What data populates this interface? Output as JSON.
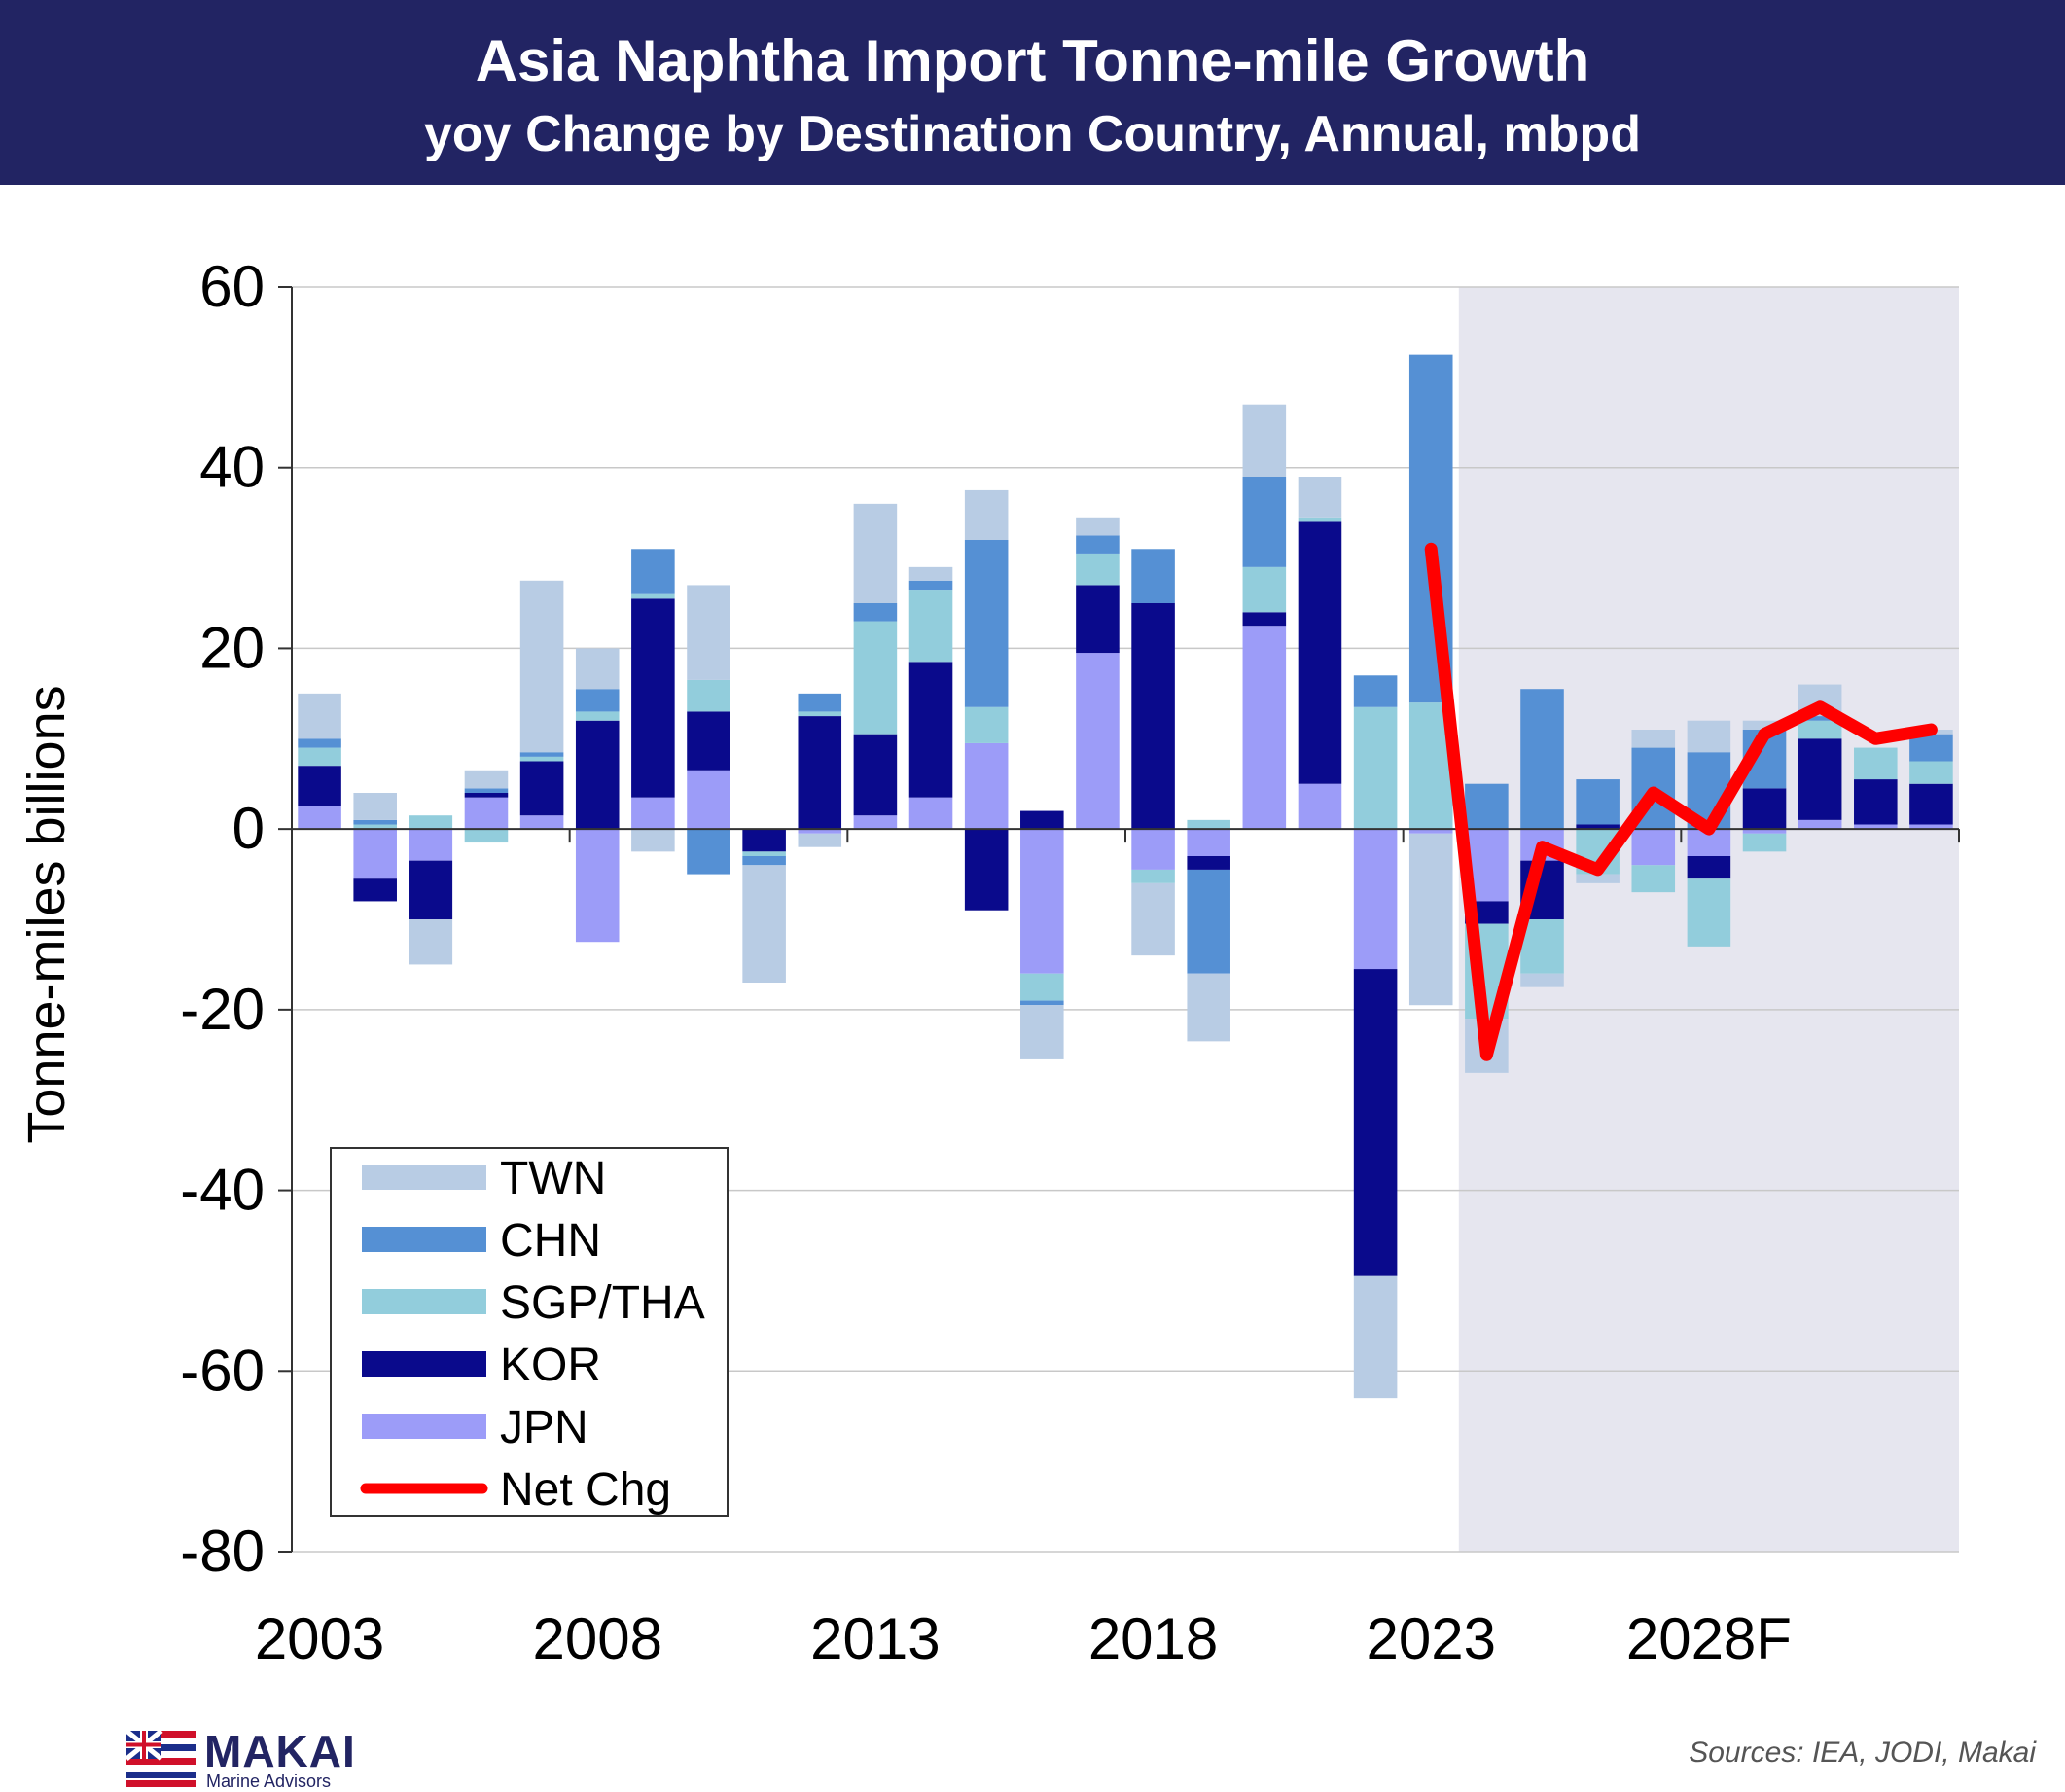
{
  "header": {
    "title": "Asia Naphtha Import Tonne-mile Growth",
    "subtitle": "yoy Change by Destination Country, Annual, mbpd"
  },
  "footer": {
    "logo_name": "MAKAI",
    "logo_tagline": "Marine Advisors",
    "sources": "Sources: IEA,  JODI, Makai"
  },
  "chart_data": {
    "type": "bar",
    "stacked": true,
    "title": "Asia Naphtha Import Tonne-mile Growth",
    "subtitle": "yoy Change by Destination Country, Annual, mbpd",
    "ylabel": "Tonne-miles billions",
    "xlabel": "",
    "ylim": [
      -80,
      60
    ],
    "yticks": [
      60,
      40,
      20,
      0,
      -20,
      -40,
      -60,
      -80
    ],
    "categories": [
      "2003",
      "2004",
      "2005",
      "2006",
      "2007",
      "2008",
      "2009",
      "2010",
      "2011",
      "2012",
      "2013",
      "2014",
      "2015",
      "2016",
      "2017",
      "2018",
      "2019",
      "2020",
      "2021",
      "2022",
      "2023",
      "2024",
      "2025",
      "2026",
      "2027",
      "2028",
      "2029",
      "2030",
      "2031",
      "2032"
    ],
    "xtick_labels": [
      {
        "category": "2003",
        "label": "2003"
      },
      {
        "category": "2008",
        "label": "2008"
      },
      {
        "category": "2013",
        "label": "2013"
      },
      {
        "category": "2018",
        "label": "2018"
      },
      {
        "category": "2023",
        "label": "2023"
      },
      {
        "category": "2028",
        "label": "2028F"
      }
    ],
    "forecast_start": "2024",
    "grid": true,
    "legend_position": "bottom-left",
    "colors": {
      "JPN": "#9c9cf8",
      "KOR": "#0a0a8c",
      "SGP/THA": "#92cddc",
      "CHN": "#5590d4",
      "TWN": "#b8cce4",
      "Net Chg": "#ff0000",
      "forecast_shade": "#e6e6ef",
      "header_bg": "#222463"
    },
    "series": [
      {
        "name": "JPN",
        "values": [
          2.5,
          -5.5,
          -3.5,
          3.5,
          1.5,
          -12.5,
          3.5,
          6.5,
          0.0,
          -0.5,
          1.5,
          3.5,
          9.5,
          -16.0,
          19.5,
          -4.5,
          -3.0,
          22.5,
          5.0,
          -15.5,
          -0.5,
          -8.0,
          -3.5,
          0.0,
          -4.0,
          -3.0,
          -0.5,
          1.0,
          0.5,
          0.5
        ]
      },
      {
        "name": "KOR",
        "values": [
          4.5,
          -2.5,
          -6.5,
          0.5,
          6.0,
          12.0,
          22.0,
          6.5,
          -2.5,
          12.5,
          9.0,
          15.0,
          -9.0,
          2.0,
          7.5,
          25.0,
          -1.5,
          1.5,
          29.0,
          -34.0,
          0.0,
          -2.5,
          -6.5,
          0.5,
          0.0,
          -2.5,
          4.5,
          9.0,
          5.0,
          4.5
        ]
      },
      {
        "name": "SGP/THA",
        "values": [
          2.0,
          0.5,
          1.5,
          -1.5,
          0.5,
          1.0,
          0.5,
          3.5,
          -0.5,
          0.5,
          12.5,
          8.0,
          4.0,
          -3.0,
          3.5,
          -1.5,
          1.0,
          5.0,
          0.5,
          13.5,
          14.0,
          -10.5,
          -6.0,
          -5.0,
          -3.0,
          -7.5,
          -2.0,
          2.0,
          3.5,
          2.5
        ]
      },
      {
        "name": "CHN",
        "values": [
          1.0,
          0.5,
          0.0,
          0.5,
          0.5,
          2.5,
          5.0,
          -5.0,
          -1.0,
          2.0,
          2.0,
          1.0,
          18.5,
          -0.5,
          2.0,
          6.0,
          -11.5,
          10.0,
          0.0,
          3.5,
          38.5,
          5.0,
          15.5,
          5.0,
          9.0,
          8.5,
          6.5,
          0.5,
          0.0,
          3.0
        ]
      },
      {
        "name": "TWN",
        "values": [
          5.0,
          3.0,
          -5.0,
          2.0,
          19.0,
          4.5,
          -2.5,
          10.5,
          -13.0,
          -1.5,
          11.0,
          1.5,
          5.5,
          -6.0,
          2.0,
          -8.0,
          -7.5,
          8.0,
          4.5,
          -13.5,
          -19.0,
          -6.0,
          -1.5,
          -1.0,
          2.0,
          3.5,
          1.0,
          3.5,
          0.0,
          0.5
        ]
      }
    ],
    "net_change": {
      "name": "Net Chg",
      "x_from": "2023",
      "values": [
        31.0,
        -25.0,
        -2.0,
        -4.5,
        4.0,
        0.0,
        10.5,
        13.5,
        10.0,
        11.0
      ]
    }
  }
}
